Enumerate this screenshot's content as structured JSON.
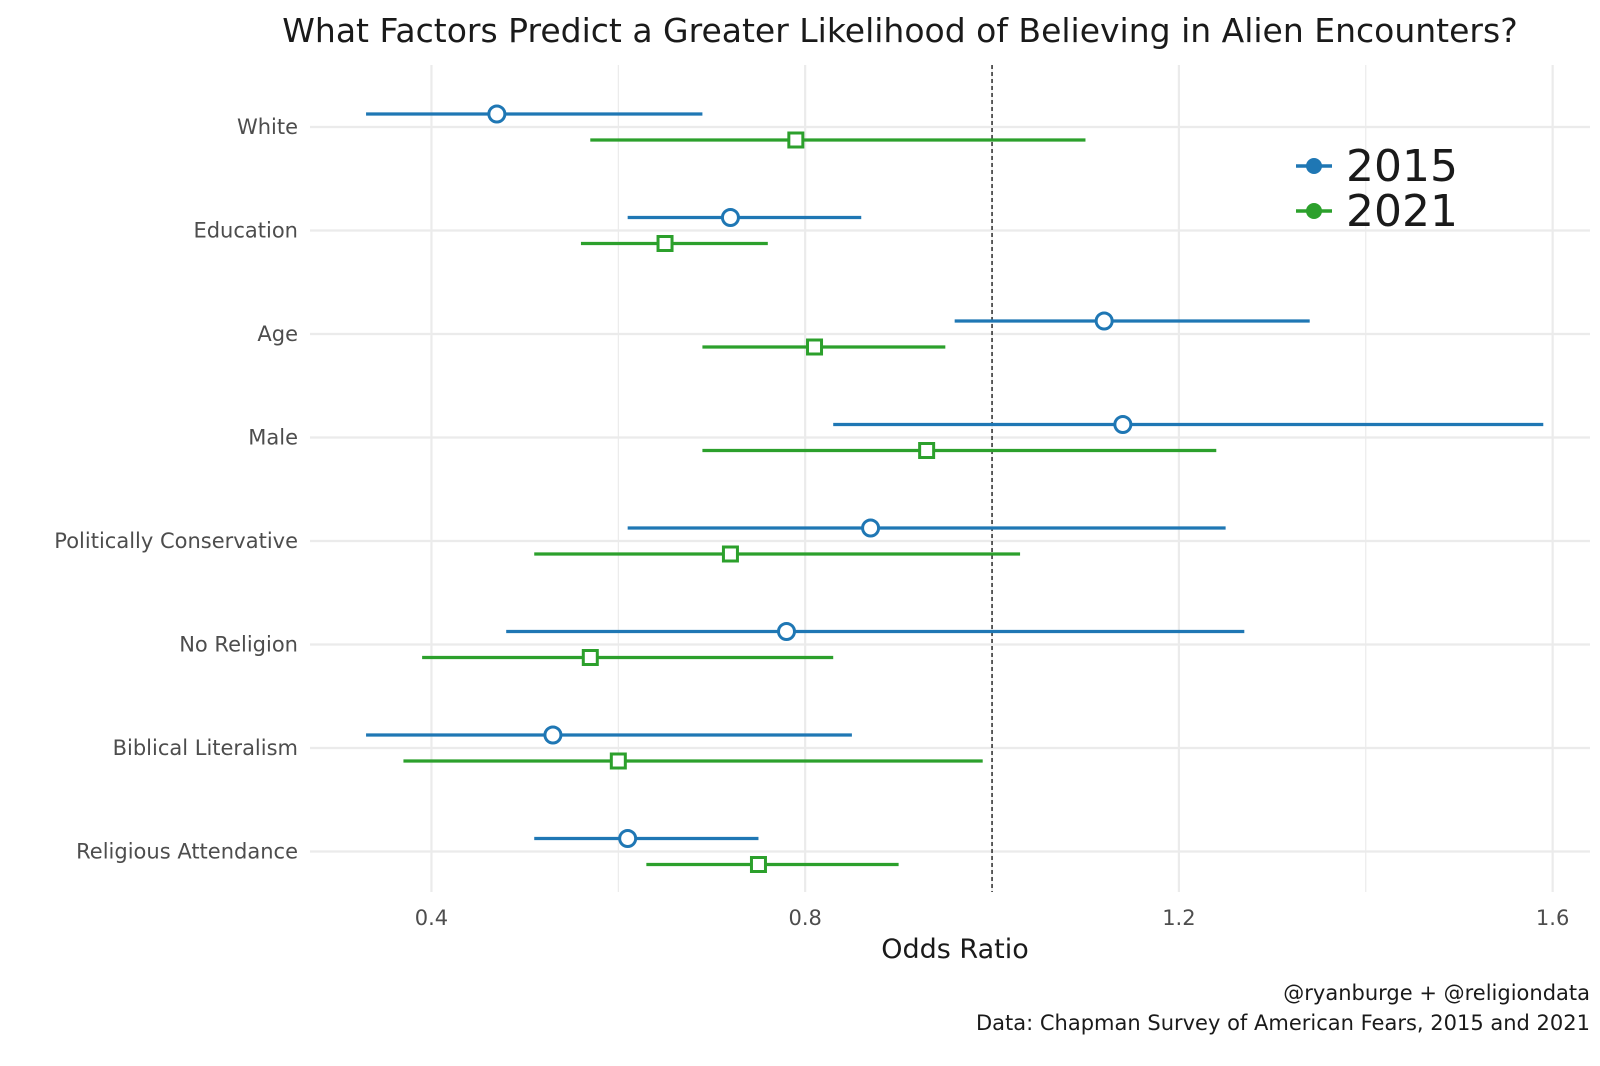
{
  "chart_data": {
    "type": "forest",
    "title": "What Factors Predict a Greater Likelihood of Believing in Alien Encounters?",
    "xlabel": "Odds Ratio",
    "ylabel": "",
    "xlim": [
      0.27,
      1.64
    ],
    "xticks": [
      0.4,
      0.8,
      1.2,
      1.6
    ],
    "xtick_labels": [
      "0.4",
      "0.8",
      "1.2",
      "1.6"
    ],
    "reference_line": 1.0,
    "grid": true,
    "legend_position": "top-right",
    "categories": [
      "White",
      "Education",
      "Age",
      "Male",
      "Politically Conservative",
      "No Religion",
      "Biblical Literalism",
      "Religious Attendance"
    ],
    "series": [
      {
        "name": "2015",
        "color": "#1f77b4",
        "marker": "circle",
        "estimates": [
          0.47,
          0.72,
          1.12,
          1.14,
          0.87,
          0.78,
          0.53,
          0.61
        ],
        "lower": [
          0.33,
          0.61,
          0.96,
          0.83,
          0.61,
          0.48,
          0.33,
          0.51
        ],
        "upper": [
          0.69,
          0.86,
          1.34,
          1.59,
          1.25,
          1.27,
          0.85,
          0.75
        ]
      },
      {
        "name": "2021",
        "color": "#2ca02c",
        "marker": "square",
        "estimates": [
          0.79,
          0.65,
          0.81,
          0.93,
          0.72,
          0.57,
          0.6,
          0.75
        ],
        "lower": [
          0.57,
          0.56,
          0.69,
          0.69,
          0.51,
          0.39,
          0.37,
          0.63
        ],
        "upper": [
          1.1,
          0.76,
          0.95,
          1.24,
          1.03,
          0.83,
          0.99,
          0.9
        ]
      }
    ],
    "caption_lines": [
      "@ryanburge + @religiondata",
      "Data: Chapman Survey of American Fears, 2015 and 2021"
    ]
  }
}
